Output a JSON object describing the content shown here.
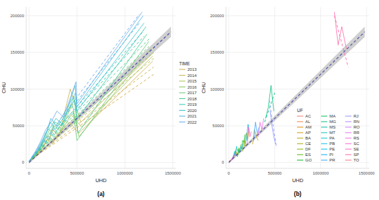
{
  "chart_data": [
    {
      "type": "line",
      "title": "(a)",
      "x_label": "UHD",
      "y_label": "CHU",
      "legend_title": "TIME",
      "legend": "right",
      "grid": true,
      "xlim": [
        -30000,
        1530000
      ],
      "ylim": [
        -8000,
        212000
      ],
      "xticks": [
        0,
        500000,
        1000000,
        1500000
      ],
      "yticks": [
        0,
        50000,
        100000,
        150000,
        200000
      ],
      "fit": {
        "color": "#4a4aa8",
        "line_style": "dashed",
        "x": [
          0,
          1480000
        ],
        "values": [
          0,
          178000
        ],
        "lower": [
          -1500,
          171000
        ],
        "upper": [
          1500,
          185000
        ]
      },
      "series": [
        {
          "name": "2013",
          "color": "#d4a94a",
          "line_style": "solid",
          "x": [
            15000,
            50000,
            90000,
            140000,
            190000,
            240000,
            300000,
            420000,
            520000,
            1290000
          ],
          "values": [
            2000,
            6000,
            14000,
            20000,
            32000,
            25000,
            38000,
            55000,
            40000,
            138000
          ],
          "trend": {
            "line_style": "dashed",
            "x": [
              0,
              1300000
            ],
            "values": [
              2000,
              120000
            ]
          }
        },
        {
          "name": "2014",
          "color": "#c3b34a",
          "line_style": "solid",
          "x": [
            16000,
            55000,
            95000,
            150000,
            200000,
            250000,
            310000,
            430000,
            540000,
            1300000
          ],
          "values": [
            2500,
            7000,
            12000,
            24000,
            28000,
            45000,
            35000,
            100000,
            55000,
            150000
          ],
          "trend": {
            "line_style": "dashed",
            "x": [
              0,
              1300000
            ],
            "values": [
              2000,
              130000
            ]
          }
        },
        {
          "name": "2015",
          "color": "#a9bd4e",
          "line_style": "solid",
          "x": [
            17000,
            57000,
            100000,
            155000,
            205000,
            255000,
            320000,
            440000,
            550000,
            1290000
          ],
          "values": [
            3000,
            8000,
            15000,
            22000,
            36000,
            30000,
            40000,
            65000,
            48000,
            145000
          ],
          "trend": {
            "line_style": "dashed",
            "x": [
              0,
              1300000
            ],
            "values": [
              2000,
              142000
            ]
          }
        },
        {
          "name": "2016",
          "color": "#86c45a",
          "line_style": "solid",
          "x": [
            17000,
            58000,
            102000,
            158000,
            210000,
            260000,
            330000,
            450000,
            520000,
            1270000
          ],
          "values": [
            3000,
            9000,
            16000,
            28000,
            32000,
            50000,
            42000,
            80000,
            35000,
            155000
          ],
          "trend": {
            "line_style": "dashed",
            "x": [
              0,
              1300000
            ],
            "values": [
              2000,
              150000
            ]
          }
        },
        {
          "name": "2017",
          "color": "#5fc86e",
          "line_style": "solid",
          "x": [
            18000,
            60000,
            105000,
            160000,
            215000,
            265000,
            335000,
            460000,
            500000,
            1250000
          ],
          "values": [
            3500,
            8000,
            18000,
            30000,
            45000,
            38000,
            52000,
            70000,
            30000,
            165000
          ],
          "trend": {
            "line_style": "dashed",
            "x": [
              0,
              1250000
            ],
            "values": [
              2000,
              158000
            ]
          }
        },
        {
          "name": "2018",
          "color": "#3fc98a",
          "line_style": "solid",
          "x": [
            18000,
            62000,
            108000,
            165000,
            220000,
            270000,
            340000,
            470000,
            510000,
            1230000
          ],
          "values": [
            4000,
            10000,
            20000,
            32000,
            40000,
            55000,
            50000,
            90000,
            40000,
            175000
          ],
          "trend": {
            "line_style": "dashed",
            "x": [
              0,
              1250000
            ],
            "values": [
              2000,
              168000
            ]
          }
        },
        {
          "name": "2019",
          "color": "#2ec6a8",
          "line_style": "solid",
          "x": [
            19000,
            63000,
            110000,
            168000,
            222000,
            275000,
            345000,
            475000,
            505000,
            1220000
          ],
          "values": [
            4000,
            11000,
            22000,
            35000,
            55000,
            45000,
            58000,
            85000,
            60000,
            185000
          ],
          "trend": {
            "line_style": "dashed",
            "x": [
              0,
              1200000
            ],
            "values": [
              2000,
              172000
            ]
          }
        },
        {
          "name": "2020",
          "color": "#30c0c4",
          "line_style": "solid",
          "x": [
            19000,
            64000,
            112000,
            170000,
            225000,
            280000,
            350000,
            480000,
            500000,
            1200000
          ],
          "values": [
            5000,
            12000,
            18000,
            40000,
            48000,
            60000,
            52000,
            105000,
            70000,
            190000
          ],
          "trend": {
            "line_style": "dashed",
            "x": [
              0,
              1200000
            ],
            "values": [
              2000,
              180000
            ]
          }
        },
        {
          "name": "2021",
          "color": "#45b5dc",
          "line_style": "solid",
          "x": [
            20000,
            65000,
            115000,
            172000,
            228000,
            285000,
            355000,
            485000,
            495000,
            1190000
          ],
          "values": [
            5000,
            14000,
            25000,
            38000,
            60000,
            50000,
            65000,
            95000,
            75000,
            200000
          ],
          "trend": {
            "line_style": "dashed",
            "x": [
              0,
              1150000
            ],
            "values": [
              2000,
              190000
            ]
          }
        },
        {
          "name": "2022",
          "color": "#6aa7ec",
          "line_style": "solid",
          "x": [
            20000,
            66000,
            118000,
            175000,
            230000,
            290000,
            360000,
            490000,
            500000,
            1180000
          ],
          "values": [
            6000,
            15000,
            28000,
            45000,
            55000,
            70000,
            62000,
            110000,
            80000,
            205000
          ],
          "trend": {
            "line_style": "dashed",
            "x": [
              0,
              1150000
            ],
            "values": [
              2000,
              202000
            ]
          }
        }
      ]
    },
    {
      "type": "line",
      "title": "(b)",
      "x_label": "UHD",
      "y_label": "CHU",
      "legend_title": "UF",
      "legend": "bottom-right",
      "grid": true,
      "xlim": [
        -30000,
        1530000
      ],
      "ylim": [
        -8000,
        212000
      ],
      "xticks": [
        0,
        500000,
        1000000,
        1500000
      ],
      "yticks": [
        0,
        50000,
        100000,
        150000,
        200000
      ],
      "fit": {
        "color": "#4a4aa8",
        "line_style": "dashed",
        "x": [
          0,
          1480000
        ],
        "values": [
          0,
          178000
        ],
        "lower": [
          -1500,
          171000
        ],
        "upper": [
          1500,
          185000
        ]
      },
      "series": [
        {
          "name": "AC",
          "color": "#F8766D",
          "line_style": "solid",
          "x": [
            8000,
            10000,
            12000,
            14000
          ],
          "values": [
            1500,
            2500,
            2000,
            3500
          ]
        },
        {
          "name": "AL",
          "color": "#EE8043",
          "line_style": "solid",
          "x": [
            45000,
            50000,
            55000,
            60000
          ],
          "values": [
            6000,
            9000,
            7000,
            11000
          ]
        },
        {
          "name": "AM",
          "color": "#E18A00",
          "line_style": "solid",
          "x": [
            60000,
            70000,
            80000,
            90000
          ],
          "values": [
            8000,
            14000,
            10000,
            15000
          ]
        },
        {
          "name": "AP",
          "color": "#D09400",
          "line_style": "solid",
          "x": [
            7000,
            9000,
            11000,
            13000
          ],
          "values": [
            1000,
            2000,
            1500,
            3000
          ]
        },
        {
          "name": "BA",
          "color": "#BB9D00",
          "line_style": "solid",
          "x": [
            260000,
            280000,
            300000,
            320000
          ],
          "values": [
            25000,
            45000,
            35000,
            30000
          ]
        },
        {
          "name": "CE",
          "color": "#A3A500",
          "line_style": "solid",
          "x": [
            170000,
            190000,
            205000,
            220000
          ],
          "values": [
            22000,
            40000,
            30000,
            45000
          ]
        },
        {
          "name": "DF",
          "color": "#85AD00",
          "line_style": "solid",
          "x": [
            150000,
            165000,
            180000,
            200000
          ],
          "values": [
            15000,
            30000,
            22000,
            26000
          ]
        },
        {
          "name": "ES",
          "color": "#5BB300",
          "line_style": "solid",
          "x": [
            100000,
            110000,
            120000,
            135000
          ],
          "values": [
            10000,
            20000,
            15000,
            25000
          ]
        },
        {
          "name": "GO",
          "color": "#00B81F",
          "line_style": "solid",
          "x": [
            140000,
            150000,
            165000,
            175000
          ],
          "values": [
            18000,
            30000,
            28000,
            38000
          ]
        },
        {
          "name": "MA",
          "color": "#00BC59",
          "line_style": "solid",
          "x": [
            85000,
            95000,
            105000,
            115000
          ],
          "values": [
            12000,
            8000,
            18000,
            14000
          ]
        },
        {
          "name": "MG",
          "color": "#00BF7D",
          "line_style": "solid",
          "x": [
            400000,
            430000,
            460000,
            490000
          ],
          "values": [
            60000,
            75000,
            105000,
            70000
          ],
          "trend": {
            "line_style": "dashed",
            "x": [
              390000,
              500000
            ],
            "values": [
              55000,
              95000
            ]
          }
        },
        {
          "name": "MS",
          "color": "#00C19C",
          "line_style": "solid",
          "x": [
            55000,
            62000,
            70000,
            78000
          ],
          "values": [
            9000,
            15000,
            12000,
            18000
          ]
        },
        {
          "name": "MT",
          "color": "#00C1B7",
          "line_style": "solid",
          "x": [
            65000,
            75000,
            85000,
            95000
          ],
          "values": [
            10000,
            12000,
            22000,
            16000
          ]
        },
        {
          "name": "PA",
          "color": "#00BFCF",
          "line_style": "solid",
          "x": [
            120000,
            130000,
            140000,
            150000
          ],
          "values": [
            15000,
            22000,
            18000,
            25000
          ]
        },
        {
          "name": "PB",
          "color": "#00BBE3",
          "line_style": "solid",
          "x": [
            50000,
            58000,
            66000,
            72000
          ],
          "values": [
            7000,
            12000,
            10000,
            16000
          ]
        },
        {
          "name": "PE",
          "color": "#00B4F0",
          "line_style": "solid",
          "x": [
            180000,
            195000,
            210000,
            225000
          ],
          "values": [
            25000,
            35000,
            52000,
            40000
          ]
        },
        {
          "name": "PI",
          "color": "#00ABFD",
          "line_style": "solid",
          "x": [
            40000,
            45000,
            50000,
            55000
          ],
          "values": [
            5000,
            8000,
            6000,
            10000
          ]
        },
        {
          "name": "PR",
          "color": "#35A2FF",
          "line_style": "solid",
          "x": [
            270000,
            290000,
            310000,
            330000
          ],
          "values": [
            30000,
            55000,
            40000,
            48000
          ]
        },
        {
          "name": "RJ",
          "color": "#8B93FF",
          "line_style": "solid",
          "x": [
            450000,
            470000,
            490000,
            510000
          ],
          "values": [
            70000,
            50000,
            35000,
            25000
          ],
          "trend": {
            "line_style": "dashed",
            "x": [
              440000,
              520000
            ],
            "values": [
              85000,
              20000
            ]
          }
        },
        {
          "name": "RN",
          "color": "#B385FF",
          "line_style": "solid",
          "x": [
            45000,
            52000,
            58000,
            64000
          ],
          "values": [
            6000,
            10000,
            8000,
            12000
          ]
        },
        {
          "name": "RO",
          "color": "#D078FF",
          "line_style": "solid",
          "x": [
            25000,
            30000,
            35000,
            40000
          ],
          "values": [
            3000,
            5000,
            4000,
            6000
          ]
        },
        {
          "name": "RR",
          "color": "#E66CF3",
          "line_style": "solid",
          "x": [
            5000,
            6000,
            7000,
            8000
          ],
          "values": [
            500,
            1000,
            800,
            1500
          ]
        },
        {
          "name": "RS",
          "color": "#F265E7",
          "line_style": "solid",
          "x": [
            320000,
            340000,
            360000,
            380000
          ],
          "values": [
            35000,
            55000,
            45000,
            60000
          ]
        },
        {
          "name": "SC",
          "color": "#FA62D4",
          "line_style": "solid",
          "x": [
            200000,
            215000,
            230000,
            245000
          ],
          "values": [
            25000,
            48000,
            35000,
            42000
          ]
        },
        {
          "name": "SE",
          "color": "#FF62BE",
          "line_style": "solid",
          "x": [
            35000,
            40000,
            45000,
            50000
          ],
          "values": [
            4000,
            7000,
            5000,
            8000
          ]
        },
        {
          "name": "SP",
          "color": "#FF66A8",
          "line_style": "solid",
          "x": [
            1150000,
            1190000,
            1230000,
            1280000
          ],
          "values": [
            205000,
            160000,
            185000,
            155000
          ],
          "trend": {
            "line_style": "dashed",
            "x": [
              1150000,
              1300000
            ],
            "values": [
              200000,
              130000
            ]
          }
        },
        {
          "name": "TO",
          "color": "#FC6F8B",
          "line_style": "solid",
          "x": [
            20000,
            25000,
            30000,
            35000
          ],
          "values": [
            2000,
            4000,
            3000,
            5000
          ]
        }
      ]
    }
  ]
}
